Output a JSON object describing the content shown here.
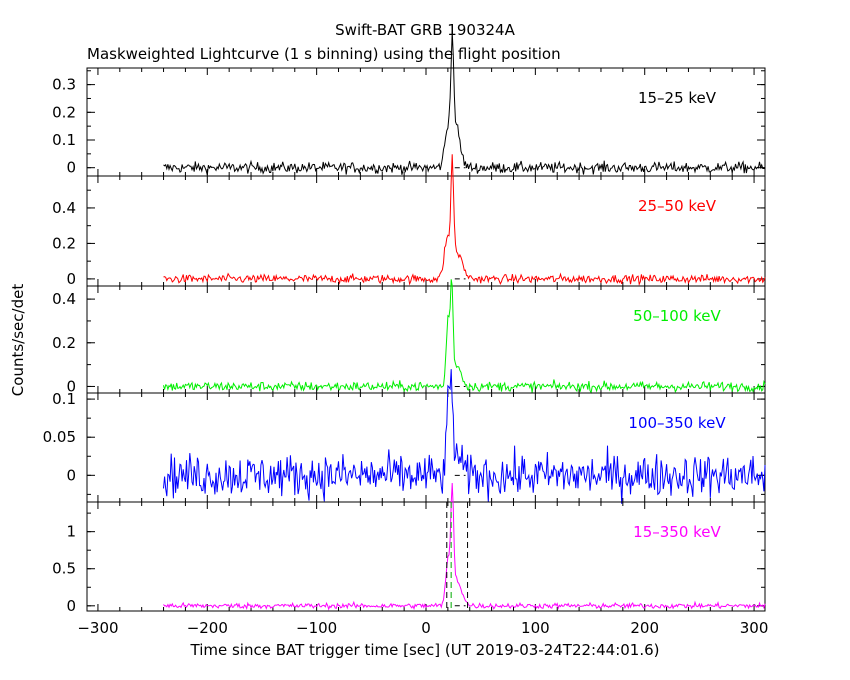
{
  "chart_data": {
    "type": "line",
    "title": "Swift-BAT GRB 190324A",
    "subtitle": "Maskweighted Lightcurve (1 s binning) using the flight position",
    "xlabel": "Time since BAT trigger time [sec] (UT 2019-03-24T22:44:01.6)",
    "ylabel": "Counts/sec/det",
    "xlim": [
      -310,
      310
    ],
    "x_ticks": [
      "−300",
      "−200",
      "−100",
      "0",
      "100",
      "200",
      "300"
    ],
    "x_tick_values": [
      -300,
      -200,
      -100,
      0,
      100,
      200,
      300
    ],
    "data_range": [
      -240,
      310
    ],
    "markers": [
      19,
      23,
      38
    ],
    "panels": [
      {
        "name": "15–25 keV",
        "color": "#000000",
        "ylim": [
          -0.03,
          0.36
        ],
        "y_ticks": [
          "0",
          "0.1",
          "0.2",
          "0.3"
        ],
        "y_tick_values": [
          0,
          0.1,
          0.2,
          0.3
        ],
        "noise": 0.01,
        "peaks": [
          {
            "t": 20,
            "a": 0.12,
            "w": 3
          },
          {
            "t": 24,
            "a": 0.32,
            "w": 1.3
          },
          {
            "t": 27,
            "a": 0.15,
            "w": 4
          }
        ]
      },
      {
        "name": "25–50 keV",
        "color": "#ff0000",
        "ylim": [
          -0.04,
          0.58
        ],
        "y_ticks": [
          "0",
          "0.2",
          "0.4"
        ],
        "y_tick_values": [
          0,
          0.2,
          0.4
        ],
        "noise": 0.012,
        "peaks": [
          {
            "t": 19,
            "a": 0.2,
            "w": 2.5
          },
          {
            "t": 24,
            "a": 0.55,
            "w": 1.3
          },
          {
            "t": 28,
            "a": 0.15,
            "w": 5
          }
        ]
      },
      {
        "name": "50–100 keV",
        "color": "#00ee00",
        "ylim": [
          -0.03,
          0.46
        ],
        "y_ticks": [
          "0",
          "0.2",
          "0.4"
        ],
        "y_tick_values": [
          0,
          0.2,
          0.4
        ],
        "noise": 0.011,
        "peaks": [
          {
            "t": 20,
            "a": 0.3,
            "w": 1.5
          },
          {
            "t": 23.5,
            "a": 0.44,
            "w": 1.2
          },
          {
            "t": 28,
            "a": 0.1,
            "w": 4
          }
        ]
      },
      {
        "name": "100–350 keV",
        "color": "#0000ff",
        "ylim": [
          -0.035,
          0.108
        ],
        "y_ticks": [
          "0",
          "0.05",
          "0.1"
        ],
        "y_tick_values": [
          0,
          0.05,
          0.1
        ],
        "noise": 0.014,
        "peaks": [
          {
            "t": 20,
            "a": 0.07,
            "w": 1.5
          },
          {
            "t": 23,
            "a": 0.1,
            "w": 1.5
          },
          {
            "t": 27,
            "a": 0.03,
            "w": 4
          }
        ]
      },
      {
        "name": "15–350 keV",
        "color": "#ff00ff",
        "ylim": [
          -0.07,
          1.4
        ],
        "y_ticks": [
          "0",
          "0.5",
          "1"
        ],
        "y_tick_values": [
          0,
          0.5,
          1
        ],
        "noise": 0.018,
        "peaks": [
          {
            "t": 20,
            "a": 0.55,
            "w": 2
          },
          {
            "t": 24,
            "a": 1.35,
            "w": 1.3
          },
          {
            "t": 28,
            "a": 0.35,
            "w": 4.5
          }
        ]
      }
    ]
  }
}
